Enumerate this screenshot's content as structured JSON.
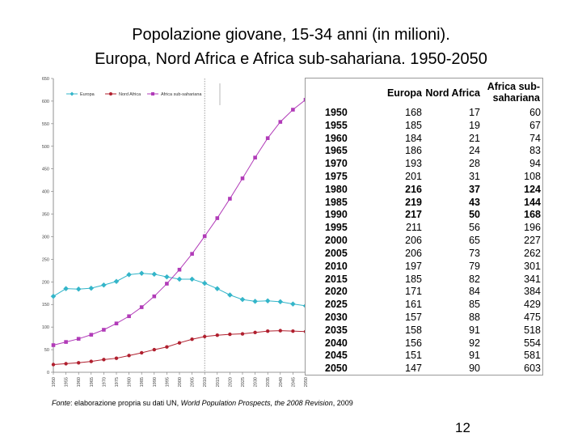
{
  "title_line1": "Popolazione giovane, 15-34 anni (in milioni).",
  "title_line2": "Europa, Nord Africa e Africa sub-sahariana. 1950-2050",
  "chart_data": {
    "type": "line",
    "title": "Popolazione giovane, 15-34 anni (in milioni). Europa, Nord Africa e Africa sub-sahariana. 1950-2050",
    "xlabel": "",
    "ylabel": "",
    "ylim": [
      0,
      650
    ],
    "yticks": [
      "0",
      "50",
      "100",
      "150",
      "200",
      "250",
      "300",
      "350",
      "400",
      "450",
      "500",
      "550",
      "600",
      "650"
    ],
    "categories": [
      "1950",
      "1955",
      "1960",
      "1965",
      "1970",
      "1975",
      "1980",
      "1985",
      "1990",
      "1995",
      "2000",
      "2005",
      "2010",
      "2015",
      "2020",
      "2025",
      "2030",
      "2035",
      "2040",
      "2045",
      "2050"
    ],
    "legend_position": "top-left",
    "reference_line_category": "2010",
    "series": [
      {
        "name": "Europa",
        "color": "#33b5c9",
        "marker": "diamond",
        "values": [
          168,
          185,
          184,
          186,
          193,
          201,
          216,
          219,
          217,
          211,
          206,
          206,
          197,
          185,
          171,
          161,
          157,
          158,
          156,
          151,
          147
        ]
      },
      {
        "name": "Nord Africa",
        "color": "#b01f2e",
        "marker": "circle",
        "values": [
          17,
          19,
          21,
          24,
          28,
          31,
          37,
          43,
          50,
          56,
          65,
          73,
          79,
          82,
          84,
          85,
          88,
          91,
          92,
          91,
          90
        ]
      },
      {
        "name": "Africa sub-sahariana",
        "color": "#b13bb8",
        "marker": "square",
        "values": [
          60,
          67,
          74,
          83,
          94,
          108,
          124,
          144,
          168,
          196,
          227,
          262,
          301,
          341,
          384,
          429,
          475,
          518,
          554,
          581,
          603
        ]
      }
    ]
  },
  "table": {
    "headers": [
      "Europa",
      "Nord Africa",
      "Africa sub-sahariana"
    ],
    "header_afr_line1": "Africa sub-",
    "header_afr_line2": "sahariana",
    "rows": [
      [
        "1950",
        "168",
        "17",
        "60"
      ],
      [
        "1955",
        "185",
        "19",
        "67"
      ],
      [
        "1960",
        "184",
        "21",
        "74"
      ],
      [
        "1965",
        "186",
        "24",
        "83"
      ],
      [
        "1970",
        "193",
        "28",
        "94"
      ],
      [
        "1975",
        "201",
        "31",
        "108"
      ],
      [
        "1980",
        "216",
        "37",
        "124"
      ],
      [
        "1985",
        "219",
        "43",
        "144"
      ],
      [
        "1990",
        "217",
        "50",
        "168"
      ],
      [
        "1995",
        "211",
        "56",
        "196"
      ],
      [
        "2000",
        "206",
        "65",
        "227"
      ],
      [
        "2005",
        "206",
        "73",
        "262"
      ],
      [
        "2010",
        "197",
        "79",
        "301"
      ],
      [
        "2015",
        "185",
        "82",
        "341"
      ],
      [
        "2020",
        "171",
        "84",
        "384"
      ],
      [
        "2025",
        "161",
        "85",
        "429"
      ],
      [
        "2030",
        "157",
        "88",
        "475"
      ],
      [
        "2035",
        "158",
        "91",
        "518"
      ],
      [
        "2040",
        "156",
        "92",
        "554"
      ],
      [
        "2045",
        "151",
        "91",
        "581"
      ],
      [
        "2050",
        "147",
        "90",
        "603"
      ]
    ],
    "bold_rows": [
      "1980",
      "1985",
      "1990"
    ]
  },
  "source": {
    "prefix": "Fonte",
    "text_plain": ": elaborazione propria su dati UN, ",
    "text_italic": "World Population Prospects, the 2008 Revision",
    "suffix": ", 2009"
  },
  "page_number": "12"
}
